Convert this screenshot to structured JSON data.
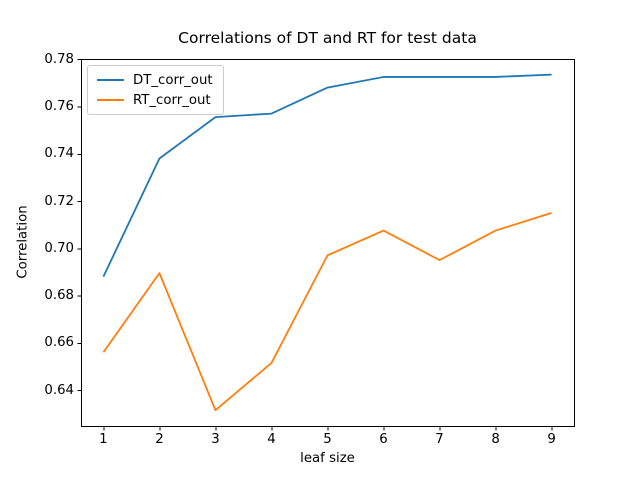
{
  "chart_data": {
    "type": "line",
    "title": "Correlations of DT and RT for test data",
    "xlabel": "leaf size",
    "ylabel": "Correlation",
    "x": [
      1,
      2,
      3,
      4,
      5,
      6,
      7,
      8,
      9
    ],
    "series": [
      {
        "name": "DT_corr_out",
        "color": "#1f77b4",
        "values": [
          0.688,
          0.738,
          0.7555,
          0.757,
          0.768,
          0.7725,
          0.7725,
          0.7725,
          0.7735
        ]
      },
      {
        "name": "RT_corr_out",
        "color": "#ff7f0e",
        "values": [
          0.656,
          0.6895,
          0.6315,
          0.6515,
          0.697,
          0.7075,
          0.695,
          0.7075,
          0.715
        ]
      }
    ],
    "xlim": [
      0.6,
      9.4
    ],
    "ylim": [
      0.6248,
      0.7801
    ],
    "xticks": [
      1,
      2,
      3,
      4,
      5,
      6,
      7,
      8,
      9
    ],
    "xtick_labels": [
      "1",
      "2",
      "3",
      "4",
      "5",
      "6",
      "7",
      "8",
      "9"
    ],
    "yticks": [
      0.64,
      0.66,
      0.68,
      0.7,
      0.72,
      0.74,
      0.76,
      0.78
    ],
    "ytick_labels": [
      "0.64",
      "0.66",
      "0.68",
      "0.70",
      "0.72",
      "0.74",
      "0.76",
      "0.78"
    ],
    "grid": false,
    "legend": {
      "position": "upper left",
      "entries": [
        "DT_corr_out",
        "RT_corr_out"
      ]
    },
    "axis_color": "#000000",
    "background_color": "#ffffff"
  }
}
